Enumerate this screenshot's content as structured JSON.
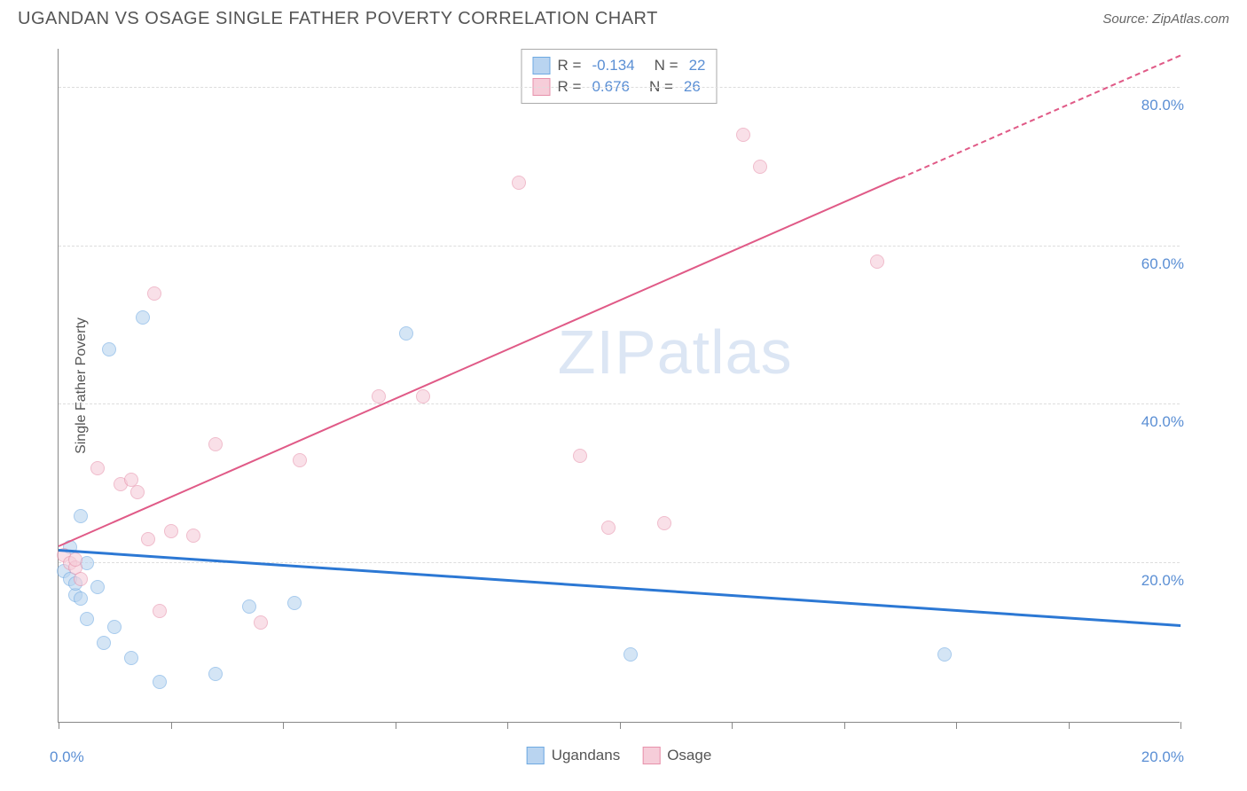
{
  "header": {
    "title": "UGANDAN VS OSAGE SINGLE FATHER POVERTY CORRELATION CHART",
    "source_prefix": "Source: ",
    "source": "ZipAtlas.com"
  },
  "chart": {
    "type": "scatter",
    "y_axis_label": "Single Father Poverty",
    "watermark": "ZIPatlas",
    "background_color": "#ffffff",
    "grid_color": "#dddddd",
    "axis_color": "#888888",
    "xlim": [
      0,
      20
    ],
    "ylim": [
      0,
      85
    ],
    "y_ticks": [
      20.0,
      40.0,
      60.0,
      80.0
    ],
    "y_tick_labels": [
      "20.0%",
      "40.0%",
      "60.0%",
      "80.0%"
    ],
    "x_ticks": [
      0,
      2,
      4,
      6,
      8,
      10,
      12,
      14,
      16,
      18,
      20
    ],
    "x_origin_label": "0.0%",
    "x_end_label": "20.0%",
    "tick_label_color": "#5b8fd4",
    "series": {
      "ugandans": {
        "label": "Ugandans",
        "color_fill": "#b9d4f0",
        "color_stroke": "#6ea9e2",
        "marker_size": 16,
        "fill_opacity": 0.6,
        "points": [
          [
            0.1,
            19
          ],
          [
            0.2,
            18
          ],
          [
            0.3,
            16
          ],
          [
            0.3,
            17.5
          ],
          [
            0.4,
            15.5
          ],
          [
            0.5,
            13
          ],
          [
            0.4,
            26
          ],
          [
            1.0,
            12
          ],
          [
            0.8,
            10
          ],
          [
            1.3,
            8
          ],
          [
            1.8,
            5
          ],
          [
            2.8,
            6
          ],
          [
            0.9,
            47
          ],
          [
            1.5,
            51
          ],
          [
            3.4,
            14.5
          ],
          [
            4.2,
            15
          ],
          [
            6.2,
            49
          ],
          [
            10.2,
            8.5
          ],
          [
            15.8,
            8.5
          ],
          [
            0.5,
            20
          ],
          [
            0.2,
            22
          ],
          [
            0.7,
            17
          ]
        ],
        "regression": {
          "y_at_x0": 21.5,
          "y_at_x20": 12.0,
          "line_color": "#2c78d4",
          "line_width": 2.5
        },
        "R": "-0.134",
        "N": "22"
      },
      "osage": {
        "label": "Osage",
        "color_fill": "#f6cdd9",
        "color_stroke": "#e791ab",
        "marker_size": 16,
        "fill_opacity": 0.6,
        "points": [
          [
            0.1,
            21
          ],
          [
            0.2,
            20
          ],
          [
            0.3,
            19.5
          ],
          [
            0.3,
            20.5
          ],
          [
            0.4,
            18
          ],
          [
            0.7,
            32
          ],
          [
            1.1,
            30
          ],
          [
            1.3,
            30.5
          ],
          [
            1.4,
            29
          ],
          [
            1.6,
            23
          ],
          [
            2.0,
            24
          ],
          [
            2.4,
            23.5
          ],
          [
            1.7,
            54
          ],
          [
            2.8,
            35
          ],
          [
            1.8,
            14
          ],
          [
            3.6,
            12.5
          ],
          [
            4.3,
            33
          ],
          [
            5.7,
            41
          ],
          [
            6.5,
            41
          ],
          [
            8.2,
            68
          ],
          [
            9.3,
            33.5
          ],
          [
            9.8,
            24.5
          ],
          [
            10.8,
            25
          ],
          [
            12.2,
            74
          ],
          [
            12.5,
            70
          ],
          [
            14.6,
            58
          ]
        ],
        "regression": {
          "y_at_x0": 22.0,
          "y_at_x20": 84.0,
          "solid_end_x": 15.0,
          "line_color": "#e05a87",
          "line_width": 2
        },
        "R": "0.676",
        "N": "26"
      }
    },
    "legend_top": {
      "rows": [
        {
          "swatch_fill": "#b9d4f0",
          "swatch_stroke": "#6ea9e2",
          "r_label": "R = ",
          "r_val": "-0.134",
          "n_label": "N = ",
          "n_val": "22"
        },
        {
          "swatch_fill": "#f6cdd9",
          "swatch_stroke": "#e791ab",
          "r_label": "R = ",
          "r_val": "0.676",
          "n_label": "N = ",
          "n_val": "26"
        }
      ]
    },
    "legend_bottom": [
      {
        "swatch_fill": "#b9d4f0",
        "swatch_stroke": "#6ea9e2",
        "label": "Ugandans"
      },
      {
        "swatch_fill": "#f6cdd9",
        "swatch_stroke": "#e791ab",
        "label": "Osage"
      }
    ]
  }
}
